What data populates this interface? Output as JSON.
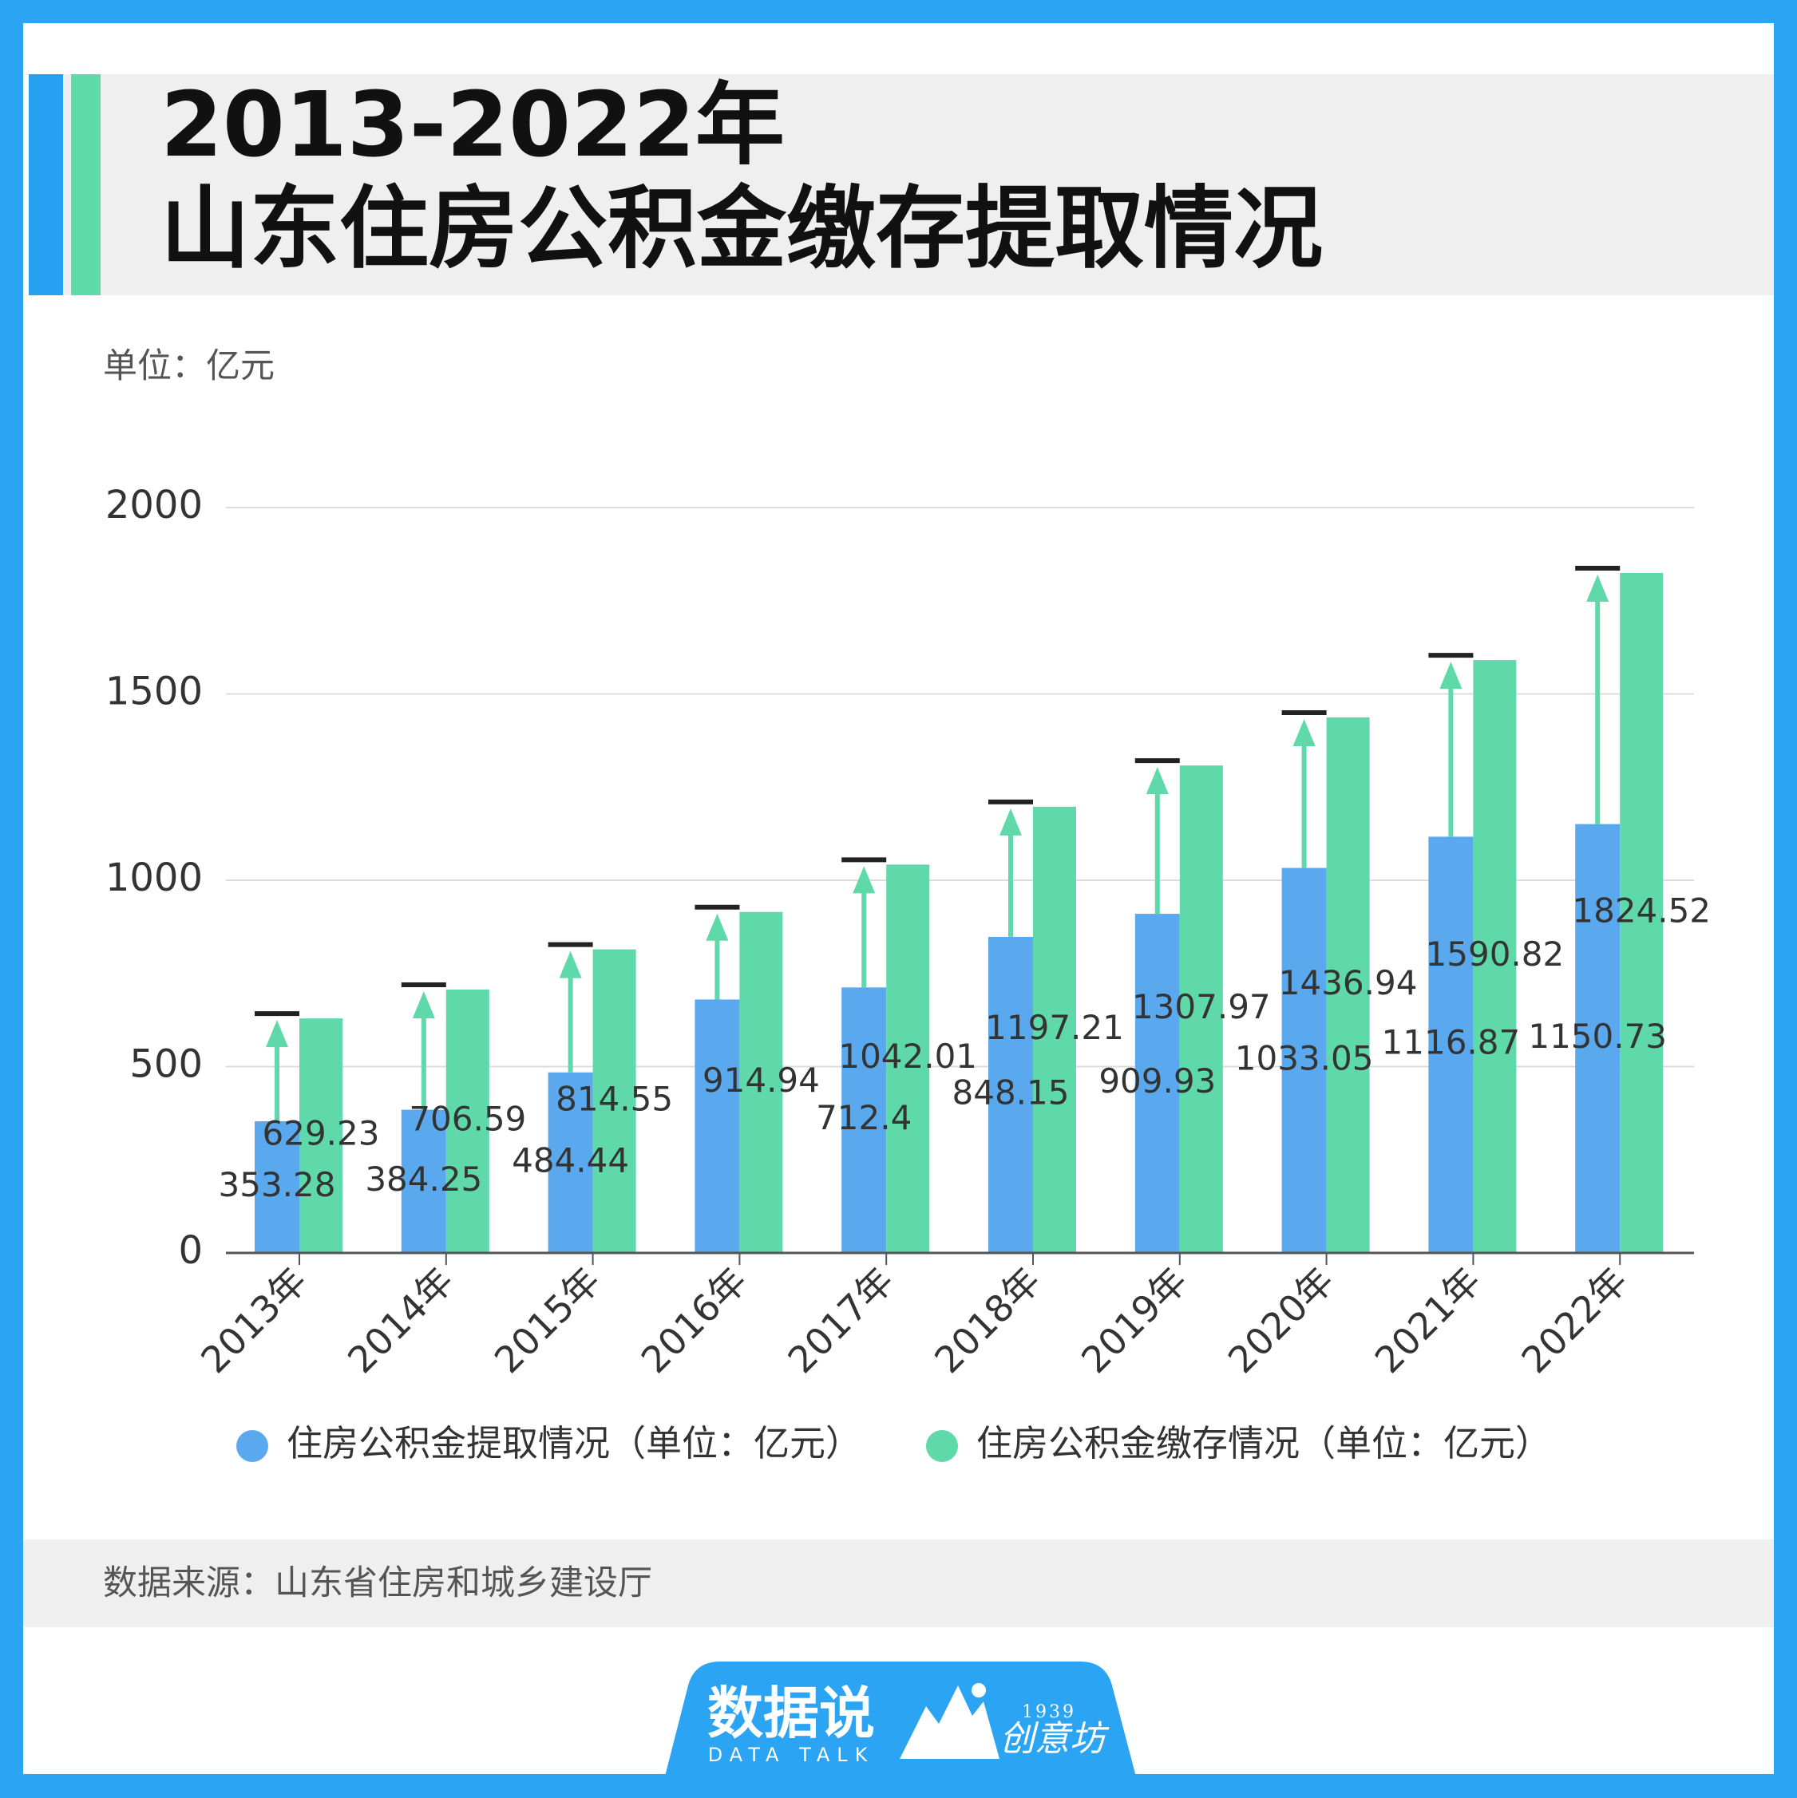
{
  "title": {
    "line1": "2013-2022年",
    "line2": "山东住房公积金缴存提取情况"
  },
  "unit": "单位：亿元",
  "source": "数据来源：山东省住房和城乡建设厅",
  "colors": {
    "frame": "#2ba4f3",
    "accent_blue": "#27a0f2",
    "accent_green": "#5edba9",
    "band": "#efefef",
    "arrow": "#5fd9aa",
    "cap": "#222222"
  },
  "logo": {
    "main": "数据说",
    "sub": "DATA TALK",
    "year": "1939",
    "name": "创意坊"
  },
  "chart_data": {
    "type": "bar",
    "categories": [
      "2013年",
      "2014年",
      "2015年",
      "2016年",
      "2017年",
      "2018年",
      "2019年",
      "2020年",
      "2021年",
      "2022年"
    ],
    "series": [
      {
        "name": "住房公积金提取情况（单位：亿元）",
        "color": "#5aa9ef",
        "values": [
          353.28,
          384.25,
          484.44,
          680,
          712.4,
          848.15,
          909.93,
          1033.05,
          1116.87,
          1150.73
        ],
        "labels": [
          "353.28",
          "384.25",
          "484.44",
          null,
          "712.4",
          "848.15",
          "909.93",
          "1033.05",
          "1116.87",
          "1150.73"
        ]
      },
      {
        "name": "住房公积金缴存情况（单位：亿元）",
        "color": "#5fd9aa",
        "values": [
          629.23,
          706.59,
          814.55,
          914.94,
          1042.01,
          1197.21,
          1307.97,
          1436.94,
          1590.82,
          1824.52
        ],
        "labels": [
          "629.23",
          "706.59",
          "814.55",
          "914.94",
          "1042.01",
          "1197.21",
          "1307.97",
          "1436.94",
          "1590.82",
          "1824.52"
        ]
      }
    ],
    "ylim": [
      0,
      2000
    ],
    "yticks": [
      0,
      500,
      1000,
      1500,
      2000
    ],
    "grid": true,
    "legend": "bottom",
    "annotations": "arrows from withdrawal bar top to deposit level"
  }
}
